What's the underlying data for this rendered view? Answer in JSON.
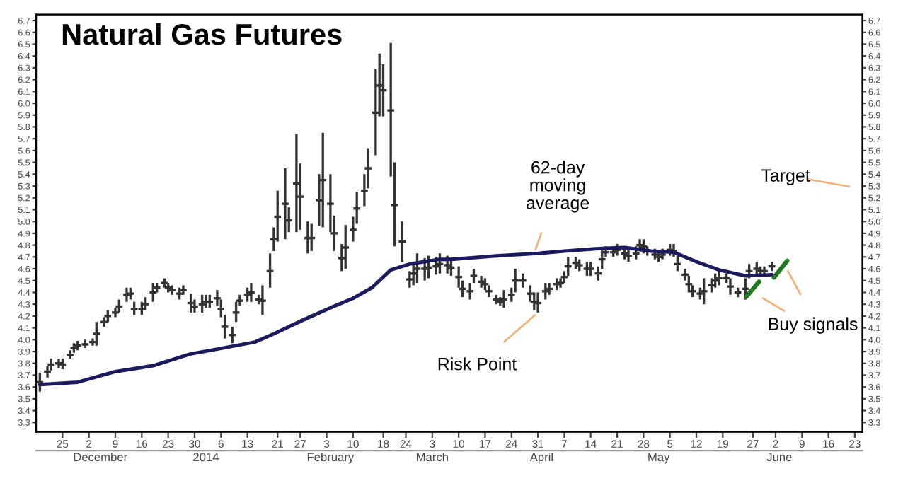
{
  "chart_data": {
    "type": "candlestick",
    "title": "Natural Gas Futures",
    "x": [
      "2013-11-19",
      "2013-11-21",
      "2013-11-22",
      "2013-11-24",
      "2013-11-25",
      "2013-11-27",
      "2013-11-28",
      "2013-11-29",
      "2013-12-01",
      "2013-12-03",
      "2013-12-04",
      "2013-12-06",
      "2013-12-07",
      "2013-12-09",
      "2013-12-10",
      "2013-12-12",
      "2013-12-13",
      "2013-12-14",
      "2013-12-16",
      "2013-12-17",
      "2013-12-19",
      "2013-12-20",
      "2013-12-22",
      "2013-12-23",
      "2013-12-24",
      "2013-12-26",
      "2013-12-27",
      "2013-12-29",
      "2013-12-30",
      "2014-01-01",
      "2014-01-02",
      "2014-01-03",
      "2014-01-05",
      "2014-01-06",
      "2014-01-07",
      "2014-01-09",
      "2014-01-10",
      "2014-01-11",
      "2014-01-13",
      "2014-01-14",
      "2014-01-16",
      "2014-01-17",
      "2014-01-19",
      "2014-01-20",
      "2014-01-21",
      "2014-01-23",
      "2014-01-24",
      "2014-01-26",
      "2014-01-27",
      "2014-01-29",
      "2014-01-30",
      "2014-02-01",
      "2014-02-02",
      "2014-02-04",
      "2014-02-05",
      "2014-02-07",
      "2014-02-08",
      "2014-02-10",
      "2014-02-11",
      "2014-02-13",
      "2014-02-14",
      "2014-02-16",
      "2014-02-17",
      "2014-02-18",
      "2014-02-20",
      "2014-02-21",
      "2014-02-23",
      "2014-02-25",
      "2014-02-26",
      "2014-02-27",
      "2014-03-01",
      "2014-03-02",
      "2014-03-04",
      "2014-03-05",
      "2014-03-07",
      "2014-03-08",
      "2014-03-10",
      "2014-03-11",
      "2014-03-13",
      "2014-03-14",
      "2014-03-16",
      "2014-03-17",
      "2014-03-18",
      "2014-03-20",
      "2014-03-21",
      "2014-03-22",
      "2014-03-24",
      "2014-03-25",
      "2014-03-27",
      "2014-03-29",
      "2014-03-30",
      "2014-03-31",
      "2014-04-02",
      "2014-04-03",
      "2014-04-05",
      "2014-04-06",
      "2014-04-07",
      "2014-04-08",
      "2014-04-10",
      "2014-04-11",
      "2014-04-13",
      "2014-04-14",
      "2014-04-16",
      "2014-04-17",
      "2014-04-18",
      "2014-04-20",
      "2014-04-21",
      "2014-04-23",
      "2014-04-24",
      "2014-04-26",
      "2014-04-27",
      "2014-04-28",
      "2014-04-29",
      "2014-05-01",
      "2014-05-02",
      "2014-05-03",
      "2014-05-05",
      "2014-05-06",
      "2014-05-07",
      "2014-05-09",
      "2014-05-10",
      "2014-05-11",
      "2014-05-13",
      "2014-05-14",
      "2014-05-16",
      "2014-05-17",
      "2014-05-18",
      "2014-05-20",
      "2014-05-21",
      "2014-05-23",
      "2014-05-25",
      "2014-05-26",
      "2014-05-28",
      "2014-05-29",
      "2014-05-30",
      "2014-06-01"
    ],
    "ohlc": [
      [
        3.64,
        3.72,
        3.56,
        3.64
      ],
      [
        3.73,
        3.78,
        3.68,
        3.73
      ],
      [
        3.79,
        3.84,
        3.74,
        3.79
      ],
      [
        3.8,
        3.84,
        3.76,
        3.8
      ],
      [
        3.79,
        3.84,
        3.75,
        3.79
      ],
      [
        3.87,
        3.91,
        3.84,
        3.87
      ],
      [
        3.93,
        3.97,
        3.89,
        3.93
      ],
      [
        3.95,
        3.99,
        3.91,
        3.95
      ],
      [
        3.96,
        4.0,
        3.93,
        3.96
      ],
      [
        3.98,
        4.01,
        3.95,
        3.98
      ],
      [
        4.05,
        4.15,
        3.95,
        4.05
      ],
      [
        4.15,
        4.19,
        4.11,
        4.15
      ],
      [
        4.2,
        4.25,
        4.15,
        4.2
      ],
      [
        4.23,
        4.27,
        4.19,
        4.23
      ],
      [
        4.28,
        4.34,
        4.23,
        4.28
      ],
      [
        4.38,
        4.44,
        4.32,
        4.38
      ],
      [
        4.39,
        4.44,
        4.34,
        4.39
      ],
      [
        4.26,
        4.32,
        4.21,
        4.26
      ],
      [
        4.26,
        4.32,
        4.21,
        4.26
      ],
      [
        4.3,
        4.36,
        4.25,
        4.3
      ],
      [
        4.4,
        4.48,
        4.32,
        4.4
      ],
      [
        4.44,
        4.48,
        4.4,
        4.44
      ],
      [
        4.48,
        4.52,
        4.44,
        4.48
      ],
      [
        4.44,
        4.48,
        4.4,
        4.44
      ],
      [
        4.42,
        4.46,
        4.38,
        4.42
      ],
      [
        4.39,
        4.44,
        4.34,
        4.39
      ],
      [
        4.42,
        4.46,
        4.38,
        4.42
      ],
      [
        4.31,
        4.39,
        4.23,
        4.31
      ],
      [
        4.28,
        4.34,
        4.23,
        4.28
      ],
      [
        4.3,
        4.38,
        4.23,
        4.3
      ],
      [
        4.32,
        4.38,
        4.27,
        4.32
      ],
      [
        4.32,
        4.38,
        4.27,
        4.32
      ],
      [
        4.35,
        4.42,
        4.29,
        4.35
      ],
      [
        4.26,
        4.34,
        4.19,
        4.26
      ],
      [
        4.11,
        4.21,
        4.01,
        4.11
      ],
      [
        4.04,
        4.11,
        3.97,
        4.04
      ],
      [
        4.23,
        4.32,
        4.15,
        4.23
      ],
      [
        4.33,
        4.38,
        4.29,
        4.33
      ],
      [
        4.38,
        4.44,
        4.32,
        4.38
      ],
      [
        4.4,
        4.48,
        4.32,
        4.4
      ],
      [
        4.34,
        4.38,
        4.3,
        4.34
      ],
      [
        4.33,
        4.46,
        4.21,
        4.33
      ],
      [
        4.58,
        4.73,
        4.44,
        4.58
      ],
      [
        4.85,
        4.95,
        4.75,
        4.85
      ],
      [
        5.04,
        5.26,
        4.83,
        5.04
      ],
      [
        5.15,
        5.45,
        4.85,
        5.15
      ],
      [
        5.01,
        5.12,
        4.91,
        5.01
      ],
      [
        5.32,
        5.74,
        4.91,
        5.32
      ],
      [
        5.21,
        5.49,
        4.93,
        5.21
      ],
      [
        4.86,
        5.0,
        4.73,
        4.86
      ],
      [
        4.86,
        4.98,
        4.75,
        4.86
      ],
      [
        5.18,
        5.4,
        4.96,
        5.18
      ],
      [
        5.35,
        5.75,
        4.95,
        5.35
      ],
      [
        5.15,
        5.4,
        4.91,
        5.15
      ],
      [
        4.9,
        5.05,
        4.75,
        4.9
      ],
      [
        4.69,
        4.81,
        4.58,
        4.69
      ],
      [
        4.78,
        4.97,
        4.6,
        4.78
      ],
      [
        4.93,
        5.04,
        4.83,
        4.93
      ],
      [
        5.11,
        5.25,
        4.98,
        5.11
      ],
      [
        5.26,
        5.4,
        5.13,
        5.26
      ],
      [
        5.45,
        5.62,
        5.28,
        5.45
      ],
      [
        5.92,
        6.29,
        5.56,
        5.92
      ],
      [
        6.15,
        6.42,
        5.89,
        6.15
      ],
      [
        6.11,
        6.33,
        5.89,
        6.11
      ],
      [
        5.94,
        6.51,
        5.38,
        5.94
      ],
      [
        5.14,
        5.5,
        4.79,
        5.14
      ],
      [
        4.83,
        5.0,
        4.66,
        4.83
      ],
      [
        4.51,
        4.58,
        4.44,
        4.51
      ],
      [
        4.56,
        4.66,
        4.46,
        4.56
      ],
      [
        4.6,
        4.73,
        4.48,
        4.6
      ],
      [
        4.6,
        4.69,
        4.5,
        4.6
      ],
      [
        4.61,
        4.71,
        4.52,
        4.61
      ],
      [
        4.62,
        4.7,
        4.55,
        4.62
      ],
      [
        4.64,
        4.73,
        4.56,
        4.64
      ],
      [
        4.63,
        4.71,
        4.56,
        4.63
      ],
      [
        4.61,
        4.68,
        4.54,
        4.61
      ],
      [
        4.53,
        4.62,
        4.44,
        4.53
      ],
      [
        4.43,
        4.5,
        4.36,
        4.43
      ],
      [
        4.41,
        4.48,
        4.34,
        4.41
      ],
      [
        4.54,
        4.6,
        4.48,
        4.54
      ],
      [
        4.49,
        4.54,
        4.44,
        4.49
      ],
      [
        4.47,
        4.52,
        4.42,
        4.47
      ],
      [
        4.41,
        4.46,
        4.36,
        4.41
      ],
      [
        4.34,
        4.38,
        4.3,
        4.34
      ],
      [
        4.32,
        4.36,
        4.29,
        4.32
      ],
      [
        4.34,
        4.42,
        4.27,
        4.34
      ],
      [
        4.38,
        4.44,
        4.32,
        4.38
      ],
      [
        4.5,
        4.6,
        4.4,
        4.5
      ],
      [
        4.5,
        4.56,
        4.44,
        4.5
      ],
      [
        4.39,
        4.46,
        4.32,
        4.39
      ],
      [
        4.32,
        4.4,
        4.25,
        4.32
      ],
      [
        4.31,
        4.4,
        4.23,
        4.31
      ],
      [
        4.41,
        4.48,
        4.34,
        4.41
      ],
      [
        4.43,
        4.48,
        4.38,
        4.43
      ],
      [
        4.47,
        4.52,
        4.42,
        4.47
      ],
      [
        4.48,
        4.52,
        4.44,
        4.48
      ],
      [
        4.53,
        4.58,
        4.48,
        4.53
      ],
      [
        4.62,
        4.7,
        4.54,
        4.62
      ],
      [
        4.65,
        4.7,
        4.6,
        4.65
      ],
      [
        4.63,
        4.68,
        4.58,
        4.63
      ],
      [
        4.6,
        4.66,
        4.54,
        4.6
      ],
      [
        4.6,
        4.66,
        4.54,
        4.6
      ],
      [
        4.56,
        4.62,
        4.5,
        4.56
      ],
      [
        4.68,
        4.77,
        4.6,
        4.68
      ],
      [
        4.74,
        4.79,
        4.7,
        4.74
      ],
      [
        4.74,
        4.79,
        4.7,
        4.74
      ],
      [
        4.76,
        4.81,
        4.71,
        4.76
      ],
      [
        4.73,
        4.79,
        4.68,
        4.73
      ],
      [
        4.71,
        4.77,
        4.66,
        4.71
      ],
      [
        4.73,
        4.79,
        4.68,
        4.73
      ],
      [
        4.8,
        4.85,
        4.75,
        4.8
      ],
      [
        4.79,
        4.85,
        4.73,
        4.79
      ],
      [
        4.75,
        4.79,
        4.71,
        4.75
      ],
      [
        4.72,
        4.77,
        4.68,
        4.72
      ],
      [
        4.7,
        4.75,
        4.66,
        4.7
      ],
      [
        4.72,
        4.77,
        4.68,
        4.72
      ],
      [
        4.76,
        4.81,
        4.71,
        4.76
      ],
      [
        4.75,
        4.81,
        4.7,
        4.75
      ],
      [
        4.64,
        4.71,
        4.58,
        4.64
      ],
      [
        4.55,
        4.6,
        4.5,
        4.55
      ],
      [
        4.47,
        4.54,
        4.4,
        4.47
      ],
      [
        4.41,
        4.46,
        4.36,
        4.41
      ],
      [
        4.39,
        4.44,
        4.34,
        4.39
      ],
      [
        4.41,
        4.52,
        4.3,
        4.41
      ],
      [
        4.46,
        4.52,
        4.4,
        4.46
      ],
      [
        4.5,
        4.56,
        4.44,
        4.5
      ],
      [
        4.52,
        4.58,
        4.46,
        4.52
      ],
      [
        4.52,
        4.56,
        4.48,
        4.52
      ],
      [
        4.45,
        4.52,
        4.38,
        4.45
      ],
      [
        4.4,
        4.44,
        4.36,
        4.4
      ],
      [
        4.43,
        4.52,
        4.34,
        4.43
      ],
      [
        4.58,
        4.64,
        4.52,
        4.58
      ],
      [
        4.6,
        4.66,
        4.54,
        4.6
      ],
      [
        4.58,
        4.62,
        4.54,
        4.58
      ],
      [
        4.58,
        4.62,
        4.54,
        4.58
      ],
      [
        4.62,
        4.66,
        4.58,
        4.62
      ]
    ],
    "color": "#333333",
    "series": [
      {
        "type": "line",
        "color": "#1c1a5e",
        "x": [
          "2013-11-19",
          "2013-11-29",
          "2013-12-09",
          "2013-12-19",
          "2013-12-29",
          "2014-01-05",
          "2014-01-15",
          "2014-01-20",
          "2014-01-28",
          "2014-02-04",
          "2014-02-10",
          "2014-02-15",
          "2014-02-20",
          "2014-02-25",
          "2014-03-05",
          "2014-03-08",
          "2014-03-20",
          "2014-03-31",
          "2014-04-07",
          "2014-04-16",
          "2014-04-23",
          "2014-04-30",
          "2014-05-06",
          "2014-05-12",
          "2014-05-18",
          "2014-05-25",
          "2014-06-01"
        ],
        "values": [
          3.62,
          3.64,
          3.73,
          3.78,
          3.88,
          3.92,
          3.98,
          4.05,
          4.17,
          4.27,
          4.35,
          4.44,
          4.59,
          4.64,
          4.68,
          4.68,
          4.71,
          4.73,
          4.75,
          4.77,
          4.78,
          4.75,
          4.74,
          4.66,
          4.59,
          4.54,
          4.55
        ]
      }
    ],
    "annotations": [
      {
        "text": "62-day\nmoving\naverage",
        "x": "2014-03-30",
        "y": 4.73
      },
      {
        "text": "Risk Point",
        "x": "2014-03-31",
        "y": 4.23
      },
      "Target",
      "Buy signals"
    ],
    "xlim": [
      "2013-11-18",
      "2014-06-25"
    ],
    "xticks": [
      {
        "value": "2013-11-25",
        "label": "25"
      },
      {
        "value": "2013-12-02",
        "label": "2"
      },
      {
        "value": "2013-12-09",
        "label": "9"
      },
      {
        "value": "2013-12-16",
        "label": "16"
      },
      {
        "value": "2013-12-23",
        "label": "23"
      },
      {
        "value": "2013-12-30",
        "label": "30"
      },
      {
        "value": "2014-01-06",
        "label": "6"
      },
      {
        "value": "2014-01-13",
        "label": "13"
      },
      {
        "value": "2014-01-21",
        "label": "21"
      },
      {
        "value": "2014-01-27",
        "label": "27"
      },
      {
        "value": "2014-02-03",
        "label": "3"
      },
      {
        "value": "2014-02-10",
        "label": "10"
      },
      {
        "value": "2014-02-18",
        "label": "18"
      },
      {
        "value": "2014-02-24",
        "label": "24"
      },
      {
        "value": "2014-03-03",
        "label": "3"
      },
      {
        "value": "2014-03-10",
        "label": "10"
      },
      {
        "value": "2014-03-17",
        "label": "17"
      },
      {
        "value": "2014-03-24",
        "label": "24"
      },
      {
        "value": "2014-03-31",
        "label": "31"
      },
      {
        "value": "2014-04-07",
        "label": "7"
      },
      {
        "value": "2014-04-14",
        "label": "14"
      },
      {
        "value": "2014-04-21",
        "label": "21"
      },
      {
        "value": "2014-04-28",
        "label": "28"
      },
      {
        "value": "2014-05-05",
        "label": "5"
      },
      {
        "value": "2014-05-12",
        "label": "12"
      },
      {
        "value": "2014-05-19",
        "label": "19"
      },
      {
        "value": "2014-05-27",
        "label": "27"
      },
      {
        "value": "2014-06-02",
        "label": "2"
      },
      {
        "value": "2014-06-09",
        "label": "9"
      },
      {
        "value": "2014-06-16",
        "label": "16"
      },
      {
        "value": "2014-06-23",
        "label": "23"
      }
    ],
    "x2lim": [
      "2013-11-18",
      "2014-06-25"
    ],
    "x2ticks": [
      {
        "value": "2013-12-05",
        "label": "December"
      },
      {
        "value": "2014-01-02",
        "label": "2014"
      },
      {
        "value": "2014-02-04",
        "label": "February"
      },
      {
        "value": "2014-03-03",
        "label": "March"
      },
      {
        "value": "2014-04-01",
        "label": "April"
      },
      {
        "value": "2014-05-02",
        "label": "May"
      },
      {
        "value": "2014-06-03",
        "label": "June"
      }
    ],
    "ylim": [
      3.22,
      6.75
    ],
    "yticks": [
      3.3,
      3.4,
      3.5,
      3.6,
      3.7,
      3.8,
      3.9,
      {
        "value": 4.0,
        "label": "4.0"
      },
      4.1,
      4.2,
      4.3,
      4.4,
      4.5,
      4.6,
      4.7,
      4.8,
      4.9,
      {
        "value": 5.0,
        "label": "5.0"
      },
      5.1,
      5.2,
      5.3,
      5.4,
      5.5,
      5.6,
      5.7,
      5.8,
      5.9,
      {
        "value": 6.0,
        "label": "6.0"
      },
      6.1,
      6.2,
      6.3,
      6.4,
      6.5,
      6.6,
      6.7
    ],
    "y2lim": [
      3.22,
      6.75
    ],
    "y2ticks": [
      3.3,
      3.4,
      3.5,
      3.6,
      3.7,
      3.8,
      3.9,
      {
        "value": 4.0,
        "label": "4.0"
      },
      4.1,
      4.2,
      4.3,
      4.4,
      4.5,
      4.6,
      4.7,
      4.8,
      4.9,
      {
        "value": 5.0,
        "label": "5.0"
      },
      5.1,
      5.2,
      5.3,
      5.4,
      5.5,
      5.6,
      5.7,
      5.8,
      5.9,
      {
        "value": 6.0,
        "label": "6.0"
      },
      6.1,
      6.2,
      6.3,
      6.4,
      6.5,
      6.6,
      6.7
    ],
    "grid": false,
    "legend": false
  }
}
